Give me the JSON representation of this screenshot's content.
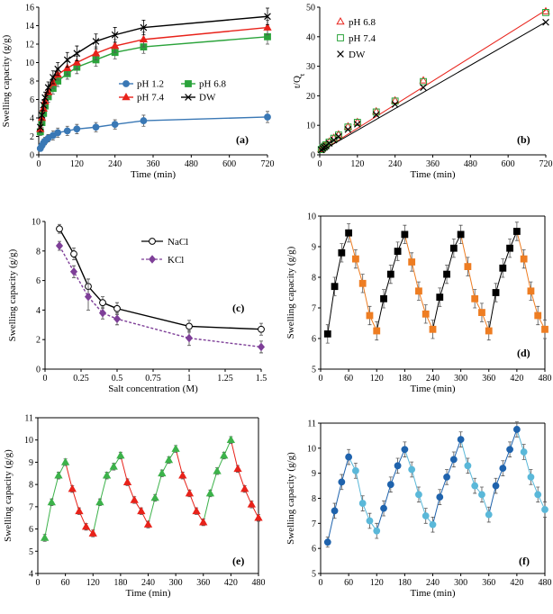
{
  "chart_data": [
    {
      "id": "a",
      "type": "line",
      "panel_label": "(a)",
      "xlabel": "Time (min)",
      "ylabel": "Swelling capacity (g/g)",
      "xlim": [
        0,
        720
      ],
      "ylim": [
        0,
        16
      ],
      "xticks": [
        0,
        120,
        240,
        360,
        480,
        600,
        720
      ],
      "yticks": [
        0,
        2,
        4,
        6,
        8,
        10,
        12,
        14,
        16
      ],
      "legend_position": "bottom-center",
      "series": [
        {
          "name": "pH 1.2",
          "color": "#3a78b5",
          "marker": "circle",
          "x": [
            5,
            10,
            15,
            20,
            30,
            45,
            60,
            90,
            120,
            180,
            240,
            330,
            720
          ],
          "y": [
            0.7,
            1.0,
            1.3,
            1.5,
            1.8,
            2.1,
            2.4,
            2.6,
            2.8,
            3.0,
            3.3,
            3.7,
            4.1
          ],
          "err": [
            0.3,
            0.3,
            0.4,
            0.4,
            0.4,
            0.5,
            0.5,
            0.5,
            0.5,
            0.5,
            0.5,
            0.6,
            0.6
          ]
        },
        {
          "name": "pH 6.8",
          "color": "#2aa33a",
          "marker": "square",
          "x": [
            5,
            10,
            15,
            20,
            30,
            45,
            60,
            90,
            120,
            180,
            240,
            330,
            720
          ],
          "y": [
            2.5,
            3.5,
            4.5,
            5.3,
            6.3,
            7.2,
            8.0,
            8.8,
            9.5,
            10.3,
            11.1,
            11.7,
            12.8
          ],
          "err": [
            0.4,
            0.5,
            0.5,
            0.5,
            0.6,
            0.6,
            0.6,
            0.6,
            0.7,
            0.7,
            0.7,
            0.7,
            0.8
          ]
        },
        {
          "name": "pH 7.4",
          "color": "#e8221a",
          "marker": "triangle",
          "x": [
            5,
            10,
            15,
            20,
            30,
            45,
            60,
            90,
            120,
            180,
            240,
            330,
            720
          ],
          "y": [
            2.8,
            4.0,
            5.0,
            5.8,
            6.8,
            7.8,
            8.7,
            9.4,
            10.0,
            11.0,
            11.8,
            12.5,
            13.8
          ],
          "err": [
            0.4,
            0.5,
            0.5,
            0.5,
            0.6,
            0.6,
            0.6,
            0.7,
            0.7,
            0.7,
            0.7,
            0.8,
            0.8
          ]
        },
        {
          "name": "DW",
          "color": "#000000",
          "marker": "x",
          "x": [
            5,
            10,
            15,
            20,
            30,
            45,
            60,
            90,
            120,
            180,
            240,
            330,
            720
          ],
          "y": [
            3.0,
            4.3,
            5.4,
            6.2,
            7.3,
            8.4,
            9.3,
            10.3,
            11.0,
            12.3,
            13.0,
            13.8,
            15.0
          ],
          "err": [
            0.5,
            0.5,
            0.6,
            0.6,
            0.6,
            0.7,
            0.7,
            0.8,
            0.8,
            0.8,
            0.8,
            0.8,
            0.9
          ]
        }
      ]
    },
    {
      "id": "b",
      "type": "scatter",
      "panel_label": "(b)",
      "xlabel": "Time (min)",
      "ylabel": "t/Q",
      "ylabel_sub": "t",
      "xlim": [
        0,
        720
      ],
      "ylim": [
        0,
        50
      ],
      "xticks": [
        0,
        120,
        240,
        360,
        480,
        600,
        720
      ],
      "yticks": [
        0,
        10,
        20,
        30,
        40,
        50
      ],
      "legend_position": "top-left",
      "series": [
        {
          "name": "pH 6.8",
          "color": "#e8221a",
          "marker": "triangle-open",
          "x": [
            5,
            10,
            15,
            20,
            30,
            45,
            60,
            90,
            120,
            180,
            240,
            330,
            720
          ],
          "y": [
            1.9,
            2.6,
            3.1,
            3.5,
            4.4,
            5.7,
            6.9,
            9.6,
            11.1,
            14.7,
            18.4,
            25.2,
            48.6
          ],
          "fit": [
            [
              0,
              1.0
            ],
            [
              720,
              49.0
            ]
          ]
        },
        {
          "name": "pH 7.4",
          "color": "#2aa33a",
          "marker": "square-open",
          "x": [
            5,
            10,
            15,
            20,
            30,
            45,
            60,
            90,
            120,
            180,
            240,
            330,
            720
          ],
          "y": [
            1.8,
            2.4,
            2.9,
            3.4,
            4.3,
            5.6,
            6.7,
            9.4,
            11.0,
            14.5,
            18.2,
            24.8,
            48.2
          ],
          "fit": null
        },
        {
          "name": "DW",
          "color": "#000000",
          "marker": "x",
          "x": [
            5,
            10,
            15,
            20,
            30,
            45,
            60,
            90,
            120,
            180,
            240,
            330,
            720
          ],
          "y": [
            1.7,
            2.2,
            2.6,
            3.0,
            3.9,
            5.0,
            6.2,
            8.6,
            10.4,
            13.6,
            17.1,
            22.8,
            44.9
          ],
          "fit": [
            [
              0,
              1.0
            ],
            [
              720,
              45.0
            ]
          ]
        }
      ]
    },
    {
      "id": "c",
      "type": "line",
      "panel_label": "(c)",
      "xlabel": "Salt concentration (M)",
      "ylabel": "Swelling capacity (g/g)",
      "xlim": [
        0,
        1.5
      ],
      "ylim": [
        0,
        10
      ],
      "xticks": [
        0,
        0.25,
        0.5,
        0.75,
        1,
        1.25,
        1.5
      ],
      "xtick_labels": [
        "0",
        "0.25",
        "0.5",
        "0.75",
        "1",
        "1.25",
        "1.5"
      ],
      "yticks": [
        0,
        2,
        4,
        6,
        8,
        10
      ],
      "legend_position": "top-right",
      "series": [
        {
          "name": "NaCl",
          "color": "#000000",
          "marker": "circle-open",
          "dash": "solid",
          "x": [
            0.1,
            0.2,
            0.3,
            0.4,
            0.5,
            1.0,
            1.5
          ],
          "y": [
            9.5,
            7.8,
            5.6,
            4.5,
            4.1,
            2.9,
            2.7
          ],
          "err": [
            0.3,
            0.4,
            0.5,
            0.4,
            0.4,
            0.4,
            0.4
          ]
        },
        {
          "name": "KCl",
          "color": "#7e3f98",
          "marker": "diamond",
          "dash": "dashed",
          "x": [
            0.1,
            0.2,
            0.3,
            0.4,
            0.5,
            1.0,
            1.5
          ],
          "y": [
            8.35,
            6.6,
            4.9,
            3.8,
            3.4,
            2.1,
            1.5
          ],
          "err": [
            0.3,
            0.4,
            0.9,
            0.4,
            0.4,
            0.5,
            0.4
          ]
        }
      ]
    },
    {
      "id": "d",
      "type": "line",
      "panel_label": "(d)",
      "xlabel": "Time (min)",
      "ylabel": "Swelling capacity (g/g)",
      "xlim": [
        0,
        480
      ],
      "ylim": [
        5,
        10
      ],
      "xticks": [
        0,
        60,
        120,
        180,
        240,
        300,
        360,
        420,
        480
      ],
      "yticks": [
        5,
        6,
        7,
        8,
        9,
        10
      ],
      "colors": {
        "rise": "#000000",
        "fall": "#ee7d22",
        "line": "#333333"
      },
      "marker": "square",
      "x": [
        15,
        30,
        45,
        60,
        75,
        90,
        105,
        120,
        135,
        150,
        165,
        180,
        195,
        210,
        225,
        240,
        255,
        270,
        285,
        300,
        315,
        330,
        345,
        360,
        375,
        390,
        405,
        420,
        435,
        450,
        465,
        480
      ],
      "y": [
        6.15,
        7.7,
        8.8,
        9.45,
        8.6,
        7.8,
        6.75,
        6.25,
        7.3,
        8.1,
        8.85,
        9.4,
        8.5,
        7.55,
        6.8,
        6.3,
        7.35,
        8.1,
        8.95,
        9.4,
        8.35,
        7.3,
        6.85,
        6.25,
        7.5,
        8.3,
        8.95,
        9.5,
        8.6,
        7.55,
        6.75,
        6.3
      ],
      "err": [
        0.3,
        0.3,
        0.3,
        0.3,
        0.3,
        0.3,
        0.3,
        0.3,
        0.3,
        0.3,
        0.3,
        0.3,
        0.3,
        0.3,
        0.3,
        0.3,
        0.3,
        0.3,
        0.3,
        0.3,
        0.3,
        0.3,
        0.3,
        0.3,
        0.3,
        0.3,
        0.3,
        0.3,
        0.3,
        0.3,
        0.3,
        0.3
      ],
      "phase": [
        "rise",
        "rise",
        "rise",
        "rise",
        "fall",
        "fall",
        "fall",
        "fall",
        "rise",
        "rise",
        "rise",
        "rise",
        "fall",
        "fall",
        "fall",
        "fall",
        "rise",
        "rise",
        "rise",
        "rise",
        "fall",
        "fall",
        "fall",
        "fall",
        "rise",
        "rise",
        "rise",
        "rise",
        "fall",
        "fall",
        "fall",
        "fall"
      ]
    },
    {
      "id": "e",
      "type": "line",
      "panel_label": "(e)",
      "xlabel": "Time (min)",
      "ylabel": "Swelling capacity (g/g)",
      "xlim": [
        0,
        480
      ],
      "ylim": [
        4,
        11
      ],
      "xticks": [
        0,
        60,
        120,
        180,
        240,
        300,
        360,
        420,
        480
      ],
      "yticks": [
        4,
        5,
        6,
        7,
        8,
        9,
        10,
        11
      ],
      "colors": {
        "rise": "#3cb24a",
        "fall": "#e8221a",
        "line": "#333333"
      },
      "marker": "triangle",
      "x": [
        15,
        30,
        45,
        60,
        75,
        90,
        105,
        120,
        135,
        150,
        165,
        180,
        195,
        210,
        225,
        240,
        255,
        270,
        285,
        300,
        315,
        330,
        345,
        360,
        375,
        390,
        405,
        420,
        435,
        450,
        465,
        480
      ],
      "y": [
        5.6,
        7.2,
        8.4,
        9.0,
        7.8,
        6.8,
        6.1,
        5.8,
        7.2,
        8.4,
        8.8,
        9.3,
        8.1,
        7.3,
        6.8,
        6.2,
        7.4,
        8.5,
        9.1,
        9.6,
        8.4,
        7.6,
        6.8,
        6.3,
        7.6,
        8.6,
        9.3,
        10.0,
        8.7,
        7.8,
        7.1,
        6.5
      ],
      "err": [
        0.15,
        0.15,
        0.15,
        0.15,
        0.15,
        0.15,
        0.15,
        0.15,
        0.15,
        0.15,
        0.15,
        0.15,
        0.15,
        0.15,
        0.15,
        0.15,
        0.15,
        0.15,
        0.15,
        0.15,
        0.15,
        0.15,
        0.15,
        0.15,
        0.15,
        0.15,
        0.15,
        0.15,
        0.15,
        0.15,
        0.15,
        0.15
      ],
      "phase": [
        "rise",
        "rise",
        "rise",
        "rise",
        "fall",
        "fall",
        "fall",
        "fall",
        "rise",
        "rise",
        "rise",
        "rise",
        "fall",
        "fall",
        "fall",
        "fall",
        "rise",
        "rise",
        "rise",
        "rise",
        "fall",
        "fall",
        "fall",
        "fall",
        "rise",
        "rise",
        "rise",
        "rise",
        "fall",
        "fall",
        "fall",
        "fall"
      ]
    },
    {
      "id": "f",
      "type": "line",
      "panel_label": "(f)",
      "xlabel": "Time (min)",
      "ylabel": "Swelling capacity (g/g)",
      "xlim": [
        0,
        480
      ],
      "ylim": [
        5,
        11
      ],
      "xticks": [
        0,
        60,
        120,
        180,
        240,
        300,
        360,
        420,
        480
      ],
      "yticks": [
        5,
        6,
        7,
        8,
        9,
        10,
        11
      ],
      "colors": {
        "rise": "#1f63ad",
        "fall": "#5ab8d9",
        "line": "#333333"
      },
      "marker": "circle",
      "x": [
        15,
        30,
        45,
        60,
        75,
        90,
        105,
        120,
        135,
        150,
        165,
        180,
        195,
        210,
        225,
        240,
        255,
        270,
        285,
        300,
        315,
        330,
        345,
        360,
        375,
        390,
        405,
        420,
        435,
        450,
        465,
        480
      ],
      "y": [
        6.25,
        7.5,
        8.65,
        9.65,
        9.1,
        7.8,
        7.1,
        6.7,
        7.6,
        8.55,
        9.3,
        9.95,
        9.15,
        8.15,
        7.3,
        6.95,
        8.05,
        8.85,
        9.55,
        10.35,
        9.3,
        8.5,
        8.15,
        7.35,
        8.5,
        9.2,
        9.95,
        10.75,
        9.85,
        8.85,
        8.15,
        7.55
      ],
      "err": [
        0.2,
        0.3,
        0.3,
        0.3,
        0.3,
        0.3,
        0.3,
        0.3,
        0.3,
        0.3,
        0.3,
        0.3,
        0.3,
        0.3,
        0.3,
        0.3,
        0.3,
        0.3,
        0.3,
        0.3,
        0.3,
        0.3,
        0.3,
        0.3,
        0.3,
        0.3,
        0.3,
        0.3,
        0.3,
        0.3,
        0.3,
        0.3
      ],
      "phase": [
        "rise",
        "rise",
        "rise",
        "rise",
        "fall",
        "fall",
        "fall",
        "fall",
        "rise",
        "rise",
        "rise",
        "rise",
        "fall",
        "fall",
        "fall",
        "fall",
        "rise",
        "rise",
        "rise",
        "rise",
        "fall",
        "fall",
        "fall",
        "fall",
        "rise",
        "rise",
        "rise",
        "rise",
        "fall",
        "fall",
        "fall",
        "fall"
      ]
    }
  ]
}
